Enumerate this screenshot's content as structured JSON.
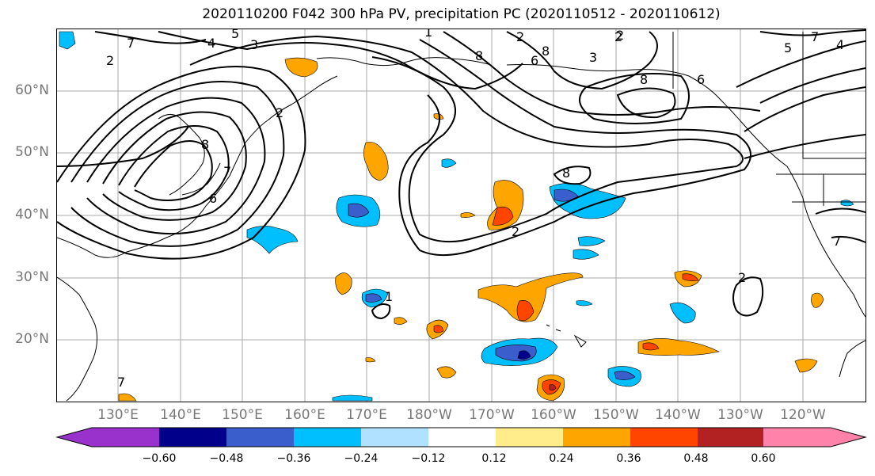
{
  "title": "2020110200 F042 300 hPa PV, precipitation PC (2020110512 - 2020110612)",
  "lat_labels": [
    "60°N",
    "50°N",
    "40°N",
    "30°N",
    "20°N"
  ],
  "lon_labels": [
    "130°E",
    "140°E",
    "150°E",
    "160°E",
    "170°E",
    "180°W",
    "170°W",
    "160°W",
    "150°W",
    "140°W",
    "130°W",
    "120°W"
  ],
  "colorbar": {
    "ticks": [
      "−0.60",
      "−0.48",
      "−0.36",
      "−0.24",
      "−0.12",
      "0.12",
      "0.24",
      "0.36",
      "0.48",
      "0.60"
    ],
    "colors": [
      "#9932cc",
      "#00008b",
      "#3a5fcd",
      "#00bfff",
      "#b0e2ff",
      "#ffffff",
      "#ffec8b",
      "#ffa500",
      "#ff4500",
      "#b22222",
      "#ff82ab"
    ]
  },
  "contour_labels": [
    "2",
    "4",
    "5",
    "3",
    "2",
    "8",
    "6",
    "7",
    "8",
    "2",
    "8",
    "3",
    "6",
    "5",
    "7",
    "4",
    "6",
    "8",
    "7",
    "7",
    "8",
    "2",
    "7",
    "2",
    "1",
    "2",
    "1",
    "2"
  ],
  "colors": {
    "axis_label": "#777777",
    "grid": "#aaaaaa",
    "contour": "#000000"
  }
}
